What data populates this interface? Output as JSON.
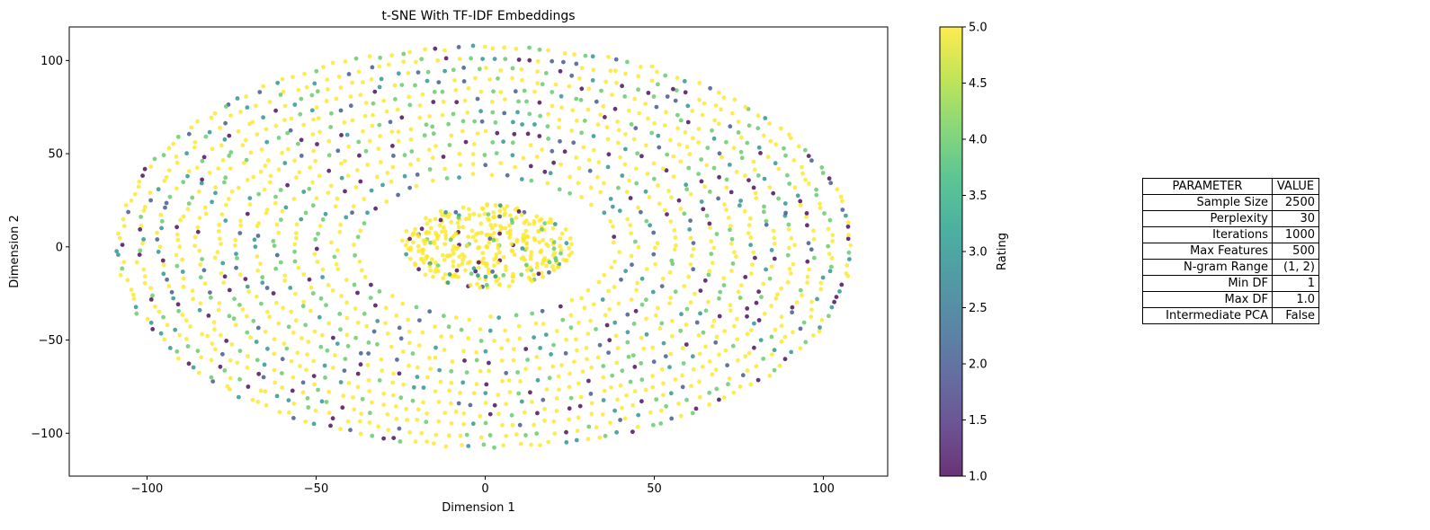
{
  "chart_data": {
    "type": "scatter",
    "title": "t-SNE With TF-IDF Embeddings",
    "xlabel": "Dimension 1",
    "ylabel": "Dimension 2",
    "xlim": [
      -123,
      119
    ],
    "ylim": [
      -123,
      118
    ],
    "xticks": [
      -100,
      -50,
      0,
      50,
      100
    ],
    "xtick_labels": [
      "−100",
      "−50",
      "0",
      "50",
      "100"
    ],
    "yticks": [
      -100,
      -50,
      0,
      50,
      100
    ],
    "ytick_labels": [
      "−100",
      "−50",
      "0",
      "50",
      "100"
    ],
    "grid": false,
    "colormap": "viridis",
    "point_alpha": 0.8,
    "colorbar": {
      "label": "Rating",
      "range": [
        1.0,
        5.0
      ],
      "ticks": [
        1.0,
        1.5,
        2.0,
        2.5,
        3.0,
        3.5,
        4.0,
        4.5,
        5.0
      ],
      "tick_labels": [
        "1.0",
        "1.5",
        "2.0",
        "2.5",
        "3.0",
        "3.5",
        "4.0",
        "4.5",
        "5.0"
      ]
    },
    "series": [
      {
        "value_field": "rating",
        "structure": "outer elliptical ring of evenly spaced points around a dense central cluster",
        "outer_ring": {
          "x_extent": [
            -112,
            108
          ],
          "y_extent": [
            -112,
            107
          ],
          "inner_gap_x": [
            -33,
            37
          ],
          "inner_gap_y": [
            -33,
            32
          ]
        },
        "central_cluster": {
          "x_extent": [
            -25,
            26
          ],
          "y_extent": [
            -24,
            31
          ]
        },
        "rating_distribution": {
          "5": 0.55,
          "4": 0.2,
          "3": 0.1,
          "2": 0.07,
          "1": 0.08
        },
        "point_count": 2500
      }
    ]
  },
  "parameters": {
    "header": [
      "PARAMETER",
      "VALUE"
    ],
    "rows": [
      [
        "Sample Size",
        "2500"
      ],
      [
        "Perplexity",
        "30"
      ],
      [
        "Iterations",
        "1000"
      ],
      [
        "Max Features",
        "500"
      ],
      [
        "N-gram Range",
        "(1, 2)"
      ],
      [
        "Min DF",
        "1"
      ],
      [
        "Max DF",
        "1.0"
      ],
      [
        "Intermediate PCA",
        "False"
      ]
    ]
  }
}
